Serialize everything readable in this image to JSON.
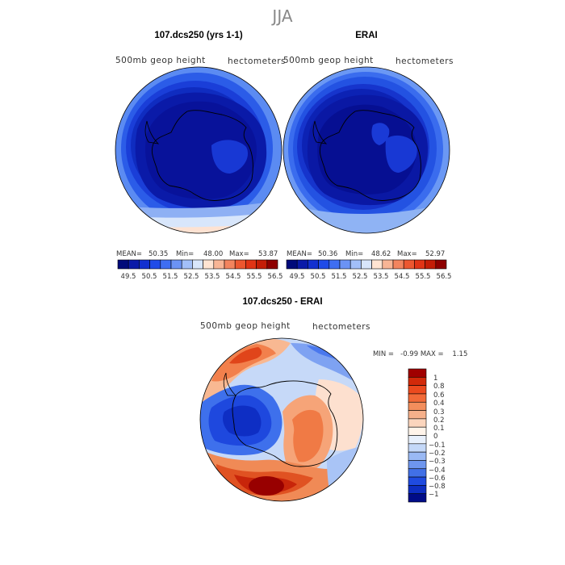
{
  "page": {
    "season": "JJA"
  },
  "panels": [
    {
      "title": "107.dcs250 (yrs 1-1)",
      "left_label": "500mb geop height",
      "right_label": "hectometers",
      "stats": {
        "mean_label": "MEAN=",
        "mean": "50.35",
        "min_label": "Min=",
        "min": "48.00",
        "max_label": "Max=",
        "max": "53.87"
      }
    },
    {
      "title": "ERAI",
      "left_label": "500mb geop height",
      "right_label": "hectometers",
      "stats": {
        "mean_label": "MEAN=",
        "mean": "50.36",
        "min_label": "Min=",
        "min": "48.62",
        "max_label": "Max=",
        "max": "52.97"
      }
    },
    {
      "title": "107.dcs250 - ERAI",
      "left_label": "500mb geop height",
      "right_label": "hectometers",
      "stats_text": "MIN =   -0.99 MAX =    1.15"
    }
  ],
  "colorbar_abs": {
    "labels": [
      "49.5",
      "50.5",
      "51.5",
      "52.5",
      "53.5",
      "54.5",
      "55.5",
      "56.5"
    ],
    "colors": [
      "#000a7a",
      "#0a1aa8",
      "#1230d0",
      "#1f4be8",
      "#3e6ef2",
      "#6b93f5",
      "#a2bff8",
      "#d8e6fb",
      "#ffe4d2",
      "#f8b595",
      "#f2845e",
      "#ec5730",
      "#e03416",
      "#c41d07",
      "#8e0000"
    ]
  },
  "colorbar_diff": {
    "labels": [
      "1",
      "0.8",
      "0.6",
      "0.4",
      "0.3",
      "0.2",
      "0.1",
      "0",
      "−0.1",
      "−0.2",
      "−0.3",
      "−0.4",
      "−0.6",
      "−0.8",
      "−1"
    ],
    "colors": [
      "#a00000",
      "#d22a0a",
      "#ec4a1e",
      "#f26a38",
      "#f38e5c",
      "#f6b08a",
      "#fbd5bd",
      "#fff4ea",
      "#e8f0fc",
      "#c4d8f8",
      "#9ab9f4",
      "#6e96ee",
      "#4170e6",
      "#1f4be0",
      "#0d2ec2",
      "#000c88"
    ]
  },
  "colors": {
    "deep_blue": "#0a1aa0",
    "mid_blue": "#1f46dc",
    "light_blue": "#8fb3f4",
    "pale_blue": "#d8e6fb",
    "peach": "#fde0cf",
    "orange": "#f07a45",
    "red": "#d6300c",
    "dark_red": "#9a0000"
  }
}
